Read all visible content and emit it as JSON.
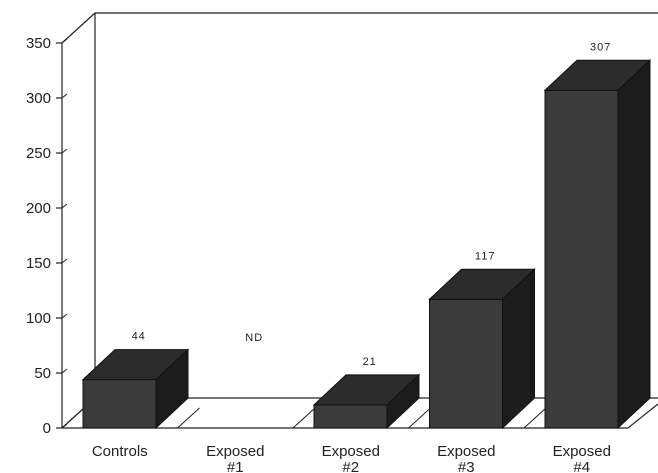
{
  "chart_data": {
    "type": "bar",
    "categories": [
      "Controls",
      "Exposed #1",
      "Exposed #2",
      "Exposed #3",
      "Exposed #4"
    ],
    "category_lines": [
      [
        "Controls"
      ],
      [
        "Exposed",
        "#1"
      ],
      [
        "Exposed",
        "#2"
      ],
      [
        "Exposed",
        "#3"
      ],
      [
        "Exposed",
        "#4"
      ]
    ],
    "values": [
      44,
      null,
      21,
      117,
      307
    ],
    "data_labels": [
      "44",
      "ND",
      "21",
      "117",
      "307"
    ],
    "ylim": [
      0,
      350
    ],
    "yticks": [
      0,
      50,
      100,
      150,
      200,
      250,
      300,
      350
    ],
    "title": "",
    "xlabel": "",
    "ylabel": "",
    "grid": false,
    "colors": {
      "bar_front": "#3b3b3b",
      "bar_top": "#2c2c2c",
      "bar_side": "#1c1c1c",
      "axis": "#222222"
    }
  }
}
